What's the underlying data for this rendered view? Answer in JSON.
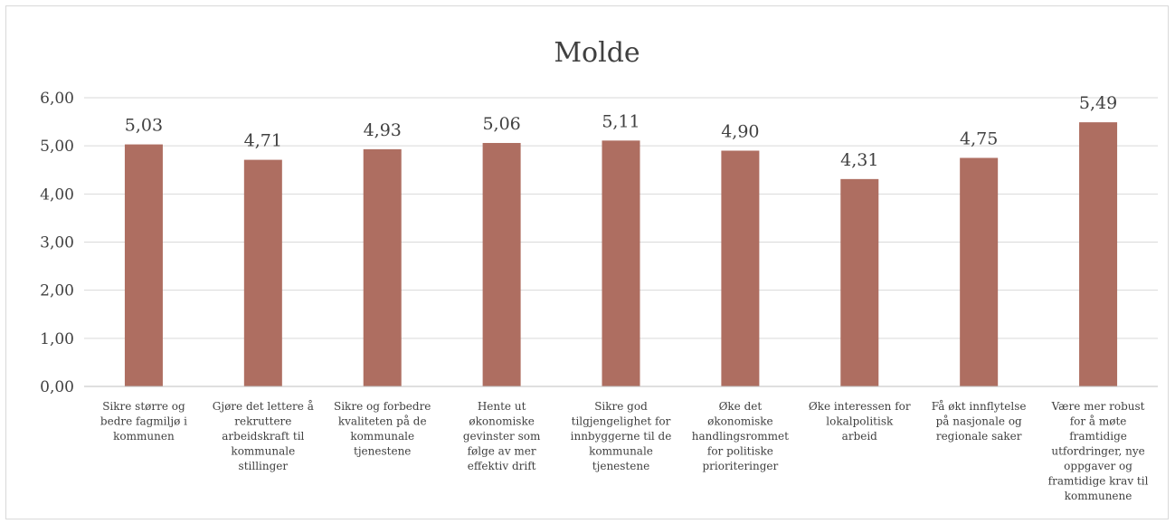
{
  "chart_data": {
    "type": "bar",
    "title": "Molde",
    "xlabel": "",
    "ylabel": "",
    "ylim": [
      0,
      6
    ],
    "yticks": [
      "0,00",
      "1,00",
      "2,00",
      "3,00",
      "4,00",
      "5,00",
      "6,00"
    ],
    "grid": true,
    "legend": "none",
    "bar_color": "#ae6e61",
    "categories": [
      [
        "Sikre større og",
        "bedre fagmiljø i",
        "kommunen"
      ],
      [
        "Gjøre det lettere å",
        "rekruttere",
        "arbeidskraft til",
        "kommunale",
        "stillinger"
      ],
      [
        "Sikre og forbedre",
        "kvaliteten på de",
        "kommunale",
        "tjenestene"
      ],
      [
        "Hente ut",
        "økonomiske",
        "gevinster som",
        "følge av mer",
        "effektiv drift"
      ],
      [
        "Sikre god",
        "tilgjengelighet for",
        "innbyggerne til de",
        "kommunale",
        "tjenestene"
      ],
      [
        "Øke det",
        "økonomiske",
        "handlingsrommet",
        "for politiske",
        "prioriteringer"
      ],
      [
        "Øke interessen for",
        "lokalpolitisk",
        "arbeid"
      ],
      [
        "Få økt innflytelse",
        "på nasjonale og",
        "regionale saker"
      ],
      [
        "Være mer robust",
        "for å møte",
        "framtidige",
        "utfordringer, nye",
        "oppgaver og",
        "framtidige krav til",
        "kommunene"
      ]
    ],
    "values": [
      5.03,
      4.71,
      4.93,
      5.06,
      5.11,
      4.9,
      4.31,
      4.75,
      5.49
    ],
    "value_labels": [
      "5,03",
      "4,71",
      "4,93",
      "5,06",
      "5,11",
      "4,90",
      "4,31",
      "4,75",
      "5,49"
    ]
  }
}
